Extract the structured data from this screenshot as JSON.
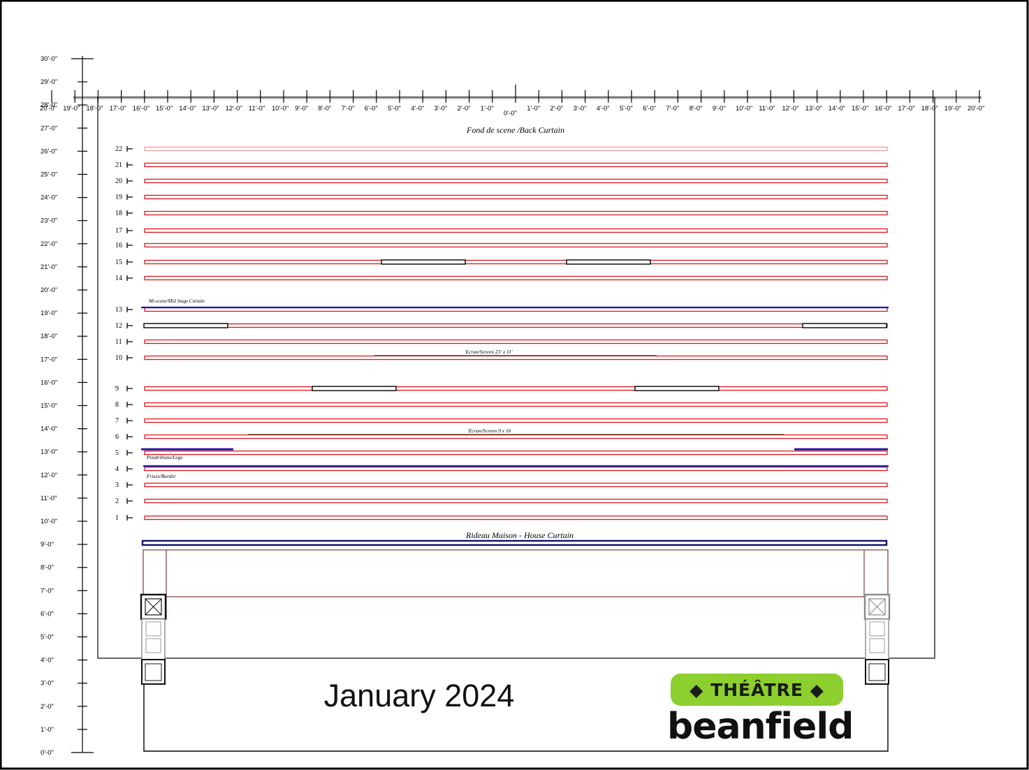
{
  "x_ruler": {
    "labels": [
      "20'-0\"",
      "19'-0\"",
      "18'-0\"",
      "17'-0\"",
      "16'-0\"",
      "15'-0\"",
      "14'-0\"",
      "13'-0\"",
      "12'-0\"",
      "11'-0\"",
      "10'-0\"",
      "9'-0\"",
      "8'-0\"",
      "7'-0\"",
      "6'-0\"",
      "5'-0\"",
      "4'-0\"",
      "3'-0\"",
      "2'-0\"",
      "1'-0\"",
      "0'-0\"",
      "1'-0\"",
      "2'-0\"",
      "3'-0\"",
      "4'-0\"",
      "5'-0\"",
      "6'-0\"",
      "7'-0\"",
      "8'-0\"",
      "9'-0\"",
      "10'-0\"",
      "11'-0\"",
      "12'-0\"",
      "13'-0\"",
      "14'-0\"",
      "15'-0\"",
      "16'-0\"",
      "17'-0\"",
      "18'-0\"",
      "19'-0\"",
      "20'-0\""
    ]
  },
  "y_ruler": {
    "labels": [
      "0'-0\"",
      "1'-0\"",
      "2'-0\"",
      "3'-0\"",
      "4'-0\"",
      "5'-0\"",
      "6'-0\"",
      "7'-0\"",
      "8'-0\"",
      "9'-0\"",
      "10'-0\"",
      "11'-0\"",
      "12'-0\"",
      "13'-0\"",
      "14'-0\"",
      "15'-0\"",
      "16'-0\"",
      "17'-0\"",
      "18'-0\"",
      "19'-0\"",
      "20'-0\"",
      "21'-0\"",
      "22'-0\"",
      "23'-0\"",
      "24'-0\"",
      "25'-0\"",
      "26'-0\"",
      "27'-0\"",
      "28'-0\"",
      "29'-0\"",
      "30'-0\""
    ]
  },
  "linesets": [
    {
      "number": "22",
      "faded": true
    },
    {
      "number": "21"
    },
    {
      "number": "20"
    },
    {
      "number": "19"
    },
    {
      "number": "18"
    },
    {
      "number": "17"
    },
    {
      "number": "16"
    },
    {
      "number": "15"
    },
    {
      "number": "14"
    },
    {
      "number": "13"
    },
    {
      "number": "12"
    },
    {
      "number": "11"
    },
    {
      "number": "10"
    },
    {
      "number": "9"
    },
    {
      "number": "8"
    },
    {
      "number": "7"
    },
    {
      "number": "6"
    },
    {
      "number": "5"
    },
    {
      "number": "4"
    },
    {
      "number": "3"
    },
    {
      "number": "2"
    },
    {
      "number": "1"
    }
  ],
  "labels": {
    "back_curtain": "Fond de scene /Back Curtain",
    "mid_curtain": "Mi-scene/Mid Stage Curtain",
    "screen_large": "Ecran/Screen  23' x 11'",
    "screen_small": "Ecran/Screen  9  x 16",
    "legs": "Pendrillons/Legs",
    "border": "Frises/Border",
    "house_curtain": "Rideau Maison  -  House Curtain"
  },
  "footer": {
    "date": "January 2024",
    "logo_badge": "◆ THÉÂTRE ◆",
    "logo_word": "beanfield"
  },
  "colors": {
    "batten": "#e0141b",
    "batten_faded": "#f0a0a0",
    "curtain": "#1a1aa8",
    "house_curtain": "#101070",
    "screen": "#8b4a3c",
    "structure": "#7a3a3a",
    "logo_badge": "#8ccf2e",
    "border": "#000000"
  },
  "icons": [
    "flag-tick-icon",
    "truss-box-icon"
  ]
}
